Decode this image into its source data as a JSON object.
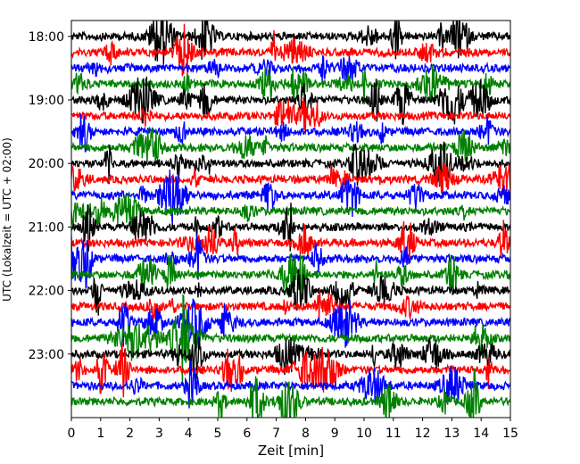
{
  "chart_data": {
    "type": "line",
    "title": "",
    "xlabel": "Zeit  [min]",
    "ylabel": "UTC (Lokalzeit = UTC + 02:00)",
    "xlim": [
      0,
      15
    ],
    "x_ticks": [
      0,
      1,
      2,
      3,
      4,
      5,
      6,
      7,
      8,
      9,
      10,
      11,
      12,
      13,
      14,
      15
    ],
    "ylim": [
      "17:45",
      "24:00"
    ],
    "y_ticks": [
      "18:00",
      "19:00",
      "20:00",
      "21:00",
      "22:00",
      "23:00"
    ],
    "y_axis_inverted": true,
    "trace_interval_minutes": 15,
    "first_trace": "18:00",
    "trace_count": 24,
    "trace_colors": [
      "#000000",
      "#ff0000",
      "#0000ff",
      "#008000"
    ],
    "grid": false,
    "legend": "none"
  }
}
